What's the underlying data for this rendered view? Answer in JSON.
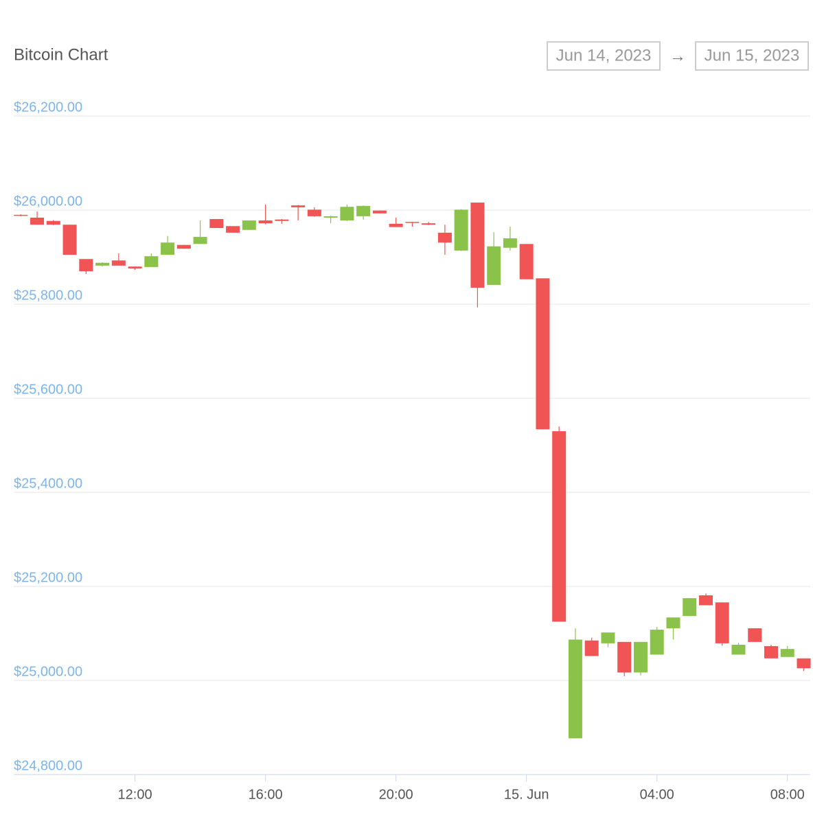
{
  "chart_data": {
    "type": "candlestick",
    "title": "Bitcoin Chart",
    "range_start": "Jun 14, 2023",
    "range_separator": "→",
    "range_end": "Jun 15, 2023",
    "x": [
      "2023-06-14T08:30",
      "2023-06-14T09:00",
      "2023-06-14T09:30",
      "2023-06-14T10:00",
      "2023-06-14T10:30",
      "2023-06-14T11:00",
      "2023-06-14T11:30",
      "2023-06-14T12:00",
      "2023-06-14T12:30",
      "2023-06-14T13:00",
      "2023-06-14T13:30",
      "2023-06-14T14:00",
      "2023-06-14T14:30",
      "2023-06-14T15:00",
      "2023-06-14T15:30",
      "2023-06-14T16:00",
      "2023-06-14T16:30",
      "2023-06-14T17:00",
      "2023-06-14T17:30",
      "2023-06-14T18:00",
      "2023-06-14T18:30",
      "2023-06-14T19:00",
      "2023-06-14T19:30",
      "2023-06-14T20:00",
      "2023-06-14T20:30",
      "2023-06-14T21:00",
      "2023-06-14T21:30",
      "2023-06-14T22:00",
      "2023-06-14T22:30",
      "2023-06-14T23:00",
      "2023-06-14T23:30",
      "2023-06-15T00:00",
      "2023-06-15T00:30",
      "2023-06-15T01:00",
      "2023-06-15T01:30",
      "2023-06-15T02:00",
      "2023-06-15T02:30",
      "2023-06-15T03:00",
      "2023-06-15T03:30",
      "2023-06-15T04:00",
      "2023-06-15T04:30",
      "2023-06-15T05:00",
      "2023-06-15T05:30",
      "2023-06-15T06:00",
      "2023-06-15T06:30",
      "2023-06-15T07:00",
      "2023-06-15T07:30",
      "2023-06-15T08:00",
      "2023-06-15T08:30"
    ],
    "open": [
      25990,
      25984,
      25977,
      25969,
      25896,
      25882,
      25893,
      25880,
      25879,
      25905,
      25926,
      25928,
      25981,
      25966,
      25958,
      25978,
      25980,
      26010,
      26001,
      25984,
      25978,
      25987,
      25999,
      25971,
      25975,
      25972,
      25952,
      25914,
      26016,
      25841,
      25920,
      25928,
      25855,
      25530,
      24877,
      25085,
      25079,
      25082,
      25017,
      25055,
      25111,
      25137,
      25181,
      25166,
      25055,
      25111,
      25073,
      25050,
      25047
    ],
    "high": [
      25991,
      25997,
      25979,
      25969,
      25896,
      25889,
      25908,
      25880,
      25908,
      25945,
      25926,
      25978,
      25981,
      25966,
      25978,
      26012,
      25981,
      26011,
      26006,
      25988,
      26012,
      26010,
      25999,
      25984,
      25975,
      25975,
      25969,
      26002,
      26016,
      25953,
      25965,
      25928,
      25855,
      25540,
      25111,
      25091,
      25102,
      25082,
      25082,
      25114,
      25134,
      25175,
      25185,
      25166,
      25080,
      25111,
      25076,
      25073,
      25047
    ],
    "low": [
      25987,
      25969,
      25968,
      25905,
      25864,
      25880,
      25882,
      25873,
      25879,
      25905,
      25918,
      25928,
      25962,
      25952,
      25958,
      25970,
      25971,
      25978,
      25986,
      25972,
      25977,
      25980,
      25993,
      25964,
      25965,
      25968,
      25905,
      25913,
      25793,
      25841,
      25914,
      25853,
      25534,
      25125,
      24877,
      25052,
      25071,
      25009,
      25011,
      25055,
      25087,
      25137,
      25160,
      25074,
      25055,
      25082,
      25047,
      25050,
      25020
    ],
    "close": [
      25988,
      25969,
      25969,
      25905,
      25870,
      25888,
      25882,
      25876,
      25902,
      25931,
      25918,
      25943,
      25962,
      25952,
      25978,
      25972,
      25977,
      26006,
      25987,
      25987,
      26007,
      26009,
      25993,
      25964,
      25974,
      25969,
      25931,
      26001,
      25835,
      25923,
      25940,
      25853,
      25534,
      25125,
      25087,
      25052,
      25102,
      25017,
      25082,
      25108,
      25134,
      25175,
      25160,
      25079,
      25076,
      25082,
      25047,
      25067,
      25026
    ],
    "up_color": "#8bc34a",
    "down_color": "#f05454",
    "xlim": [
      "2023-06-14T08:17",
      "2023-06-15T08:42"
    ],
    "xticks": [
      {
        "value": "2023-06-14T12:00",
        "label": "12:00"
      },
      {
        "value": "2023-06-14T16:00",
        "label": "16:00"
      },
      {
        "value": "2023-06-14T20:00",
        "label": "20:00"
      },
      {
        "value": "2023-06-15T00:00",
        "label": "15. Jun"
      },
      {
        "value": "2023-06-15T04:00",
        "label": "04:00"
      },
      {
        "value": "2023-06-15T08:00",
        "label": "08:00"
      }
    ],
    "ylim": [
      24800,
      26200
    ],
    "yticks": [
      {
        "value": 24800,
        "label": "$24,800.00"
      },
      {
        "value": 25000,
        "label": "$25,000.00"
      },
      {
        "value": 25200,
        "label": "$25,200.00"
      },
      {
        "value": 25400,
        "label": "$25,400.00"
      },
      {
        "value": 25600,
        "label": "$25,600.00"
      },
      {
        "value": 25800,
        "label": "$25,800.00"
      },
      {
        "value": 26000,
        "label": "$26,000.00"
      },
      {
        "value": 26200,
        "label": "$26,200.00"
      }
    ],
    "grid": true
  }
}
